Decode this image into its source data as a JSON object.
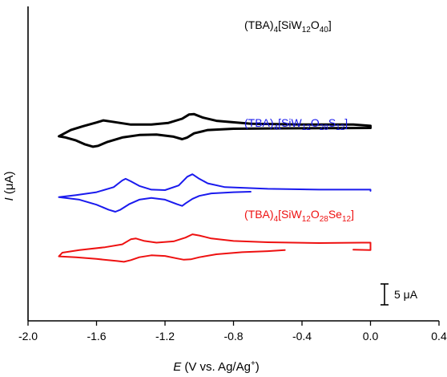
{
  "chart_data": {
    "type": "line",
    "title": "",
    "xlabel": {
      "italic": "E",
      "rest": " (V vs. Ag/Ag",
      "sup": "+",
      "end": ")"
    },
    "ylabel": {
      "italic": "I",
      "rest": " (μA)"
    },
    "xlim": [
      -2.0,
      0.4
    ],
    "x_ticks": [
      "-2.0",
      "-1.6",
      "-1.2",
      "-0.8",
      "-0.4",
      "0.0",
      "0.4"
    ],
    "x_tick_values": [
      -2.0,
      -1.6,
      -1.2,
      -0.8,
      -0.4,
      0.0,
      0.4
    ],
    "y_ticks": "none",
    "grid": false,
    "scale_bar": {
      "label": "5 μA",
      "height_uA": 5
    },
    "series": [
      {
        "label_parts": [
          [
            "(TBA)",
            "n"
          ],
          [
            "4",
            "sub"
          ],
          [
            "[SiW",
            "n"
          ],
          [
            "12",
            "sub"
          ],
          [
            "O",
            "n"
          ],
          [
            "40",
            "sub"
          ],
          [
            "]",
            "n"
          ]
        ],
        "color": "#000000",
        "offset_uA": 30,
        "forward": [
          [
            0.0,
            0.1
          ],
          [
            -0.2,
            0.05
          ],
          [
            -0.5,
            0.0
          ],
          [
            -0.8,
            -0.1
          ],
          [
            -0.95,
            -0.4
          ],
          [
            -1.03,
            -1.2
          ],
          [
            -1.07,
            -2.2
          ],
          [
            -1.1,
            -2.6
          ],
          [
            -1.15,
            -2.0
          ],
          [
            -1.25,
            -1.5
          ],
          [
            -1.35,
            -1.6
          ],
          [
            -1.45,
            -2.2
          ],
          [
            -1.54,
            -3.3
          ],
          [
            -1.59,
            -4.2
          ],
          [
            -1.62,
            -4.4
          ],
          [
            -1.67,
            -3.8
          ],
          [
            -1.72,
            -2.9
          ],
          [
            -1.78,
            -2.2
          ],
          [
            -1.82,
            -1.9
          ]
        ],
        "reverse": [
          [
            -1.82,
            -1.9
          ],
          [
            -1.75,
            -0.4
          ],
          [
            -1.68,
            0.5
          ],
          [
            -1.6,
            1.4
          ],
          [
            -1.56,
            1.9
          ],
          [
            -1.51,
            1.6
          ],
          [
            -1.4,
            0.9
          ],
          [
            -1.28,
            0.9
          ],
          [
            -1.18,
            1.3
          ],
          [
            -1.1,
            2.3
          ],
          [
            -1.06,
            3.3
          ],
          [
            -1.03,
            3.4
          ],
          [
            -0.98,
            2.6
          ],
          [
            -0.9,
            1.8
          ],
          [
            -0.7,
            1.1
          ],
          [
            -0.4,
            0.9
          ],
          [
            -0.1,
            0.9
          ],
          [
            0.0,
            0.6
          ],
          [
            0.0,
            0.1
          ]
        ]
      },
      {
        "label_parts": [
          [
            "(TBA)",
            "n"
          ],
          [
            "4",
            "sub"
          ],
          [
            "[SiW",
            "n"
          ],
          [
            "12",
            "sub"
          ],
          [
            "O",
            "n"
          ],
          [
            "28",
            "sub"
          ],
          [
            "S",
            "n"
          ],
          [
            "12",
            "sub"
          ],
          [
            "]",
            "n"
          ]
        ],
        "color": "#1a1aee",
        "offset_uA": 14,
        "forward": [
          [
            -0.7,
            0.8
          ],
          [
            -0.8,
            0.7
          ],
          [
            -0.93,
            0.4
          ],
          [
            -1.0,
            -0.2
          ],
          [
            -1.04,
            -0.9
          ],
          [
            -1.08,
            -2.0
          ],
          [
            -1.1,
            -2.6
          ],
          [
            -1.13,
            -2.2
          ],
          [
            -1.2,
            -1.1
          ],
          [
            -1.28,
            -0.7
          ],
          [
            -1.35,
            -1.1
          ],
          [
            -1.41,
            -2.2
          ],
          [
            -1.46,
            -3.5
          ],
          [
            -1.49,
            -4.0
          ],
          [
            -1.53,
            -3.5
          ],
          [
            -1.6,
            -2.3
          ],
          [
            -1.7,
            -1.1
          ],
          [
            -1.82,
            -0.5
          ]
        ],
        "reverse": [
          [
            -1.82,
            -0.5
          ],
          [
            -1.72,
            0.0
          ],
          [
            -1.6,
            0.7
          ],
          [
            -1.5,
            1.9
          ],
          [
            -1.45,
            3.5
          ],
          [
            -1.43,
            3.9
          ],
          [
            -1.4,
            3.3
          ],
          [
            -1.35,
            2.2
          ],
          [
            -1.28,
            1.3
          ],
          [
            -1.2,
            1.2
          ],
          [
            -1.12,
            2.3
          ],
          [
            -1.07,
            4.4
          ],
          [
            -1.04,
            5.0
          ],
          [
            -1.0,
            3.9
          ],
          [
            -0.95,
            2.8
          ],
          [
            -0.85,
            1.9
          ],
          [
            -0.6,
            1.5
          ],
          [
            -0.3,
            1.3
          ],
          [
            0.0,
            1.3
          ],
          [
            0.0,
            1.0
          ]
        ]
      },
      {
        "label_parts": [
          [
            "(TBA)",
            "n"
          ],
          [
            "4",
            "sub"
          ],
          [
            "[SiW",
            "n"
          ],
          [
            "12",
            "sub"
          ],
          [
            "O",
            "n"
          ],
          [
            "28",
            "sub"
          ],
          [
            "Se",
            "n"
          ],
          [
            "12",
            "sub"
          ],
          [
            "]",
            "n"
          ]
        ],
        "color": "#ee1111",
        "offset_uA": 0,
        "forward": [
          [
            -0.5,
            0.8
          ],
          [
            -0.6,
            0.55
          ],
          [
            -0.75,
            0.3
          ],
          [
            -0.9,
            -0.2
          ],
          [
            -1.0,
            -0.9
          ],
          [
            -1.05,
            -1.4
          ],
          [
            -1.09,
            -1.5
          ],
          [
            -1.13,
            -1.2
          ],
          [
            -1.2,
            -0.6
          ],
          [
            -1.28,
            -0.45
          ],
          [
            -1.35,
            -0.9
          ],
          [
            -1.4,
            -1.6
          ],
          [
            -1.44,
            -2.0
          ],
          [
            -1.48,
            -1.8
          ],
          [
            -1.6,
            -1.3
          ],
          [
            -1.72,
            -0.9
          ],
          [
            -1.82,
            -0.7
          ]
        ],
        "reverse": [
          [
            -1.82,
            -0.7
          ],
          [
            -1.8,
            0.2
          ],
          [
            -1.7,
            0.8
          ],
          [
            -1.55,
            1.5
          ],
          [
            -1.45,
            2.2
          ],
          [
            -1.4,
            3.4
          ],
          [
            -1.37,
            3.6
          ],
          [
            -1.32,
            3.0
          ],
          [
            -1.25,
            2.6
          ],
          [
            -1.15,
            2.9
          ],
          [
            -1.08,
            3.8
          ],
          [
            -1.04,
            4.6
          ],
          [
            -1.0,
            4.3
          ],
          [
            -0.93,
            3.6
          ],
          [
            -0.8,
            3.0
          ],
          [
            -0.6,
            2.7
          ],
          [
            -0.3,
            2.5
          ],
          [
            -0.05,
            2.6
          ],
          [
            0.0,
            2.6
          ],
          [
            0.0,
            0.8
          ],
          [
            -0.1,
            0.9
          ]
        ]
      }
    ]
  }
}
